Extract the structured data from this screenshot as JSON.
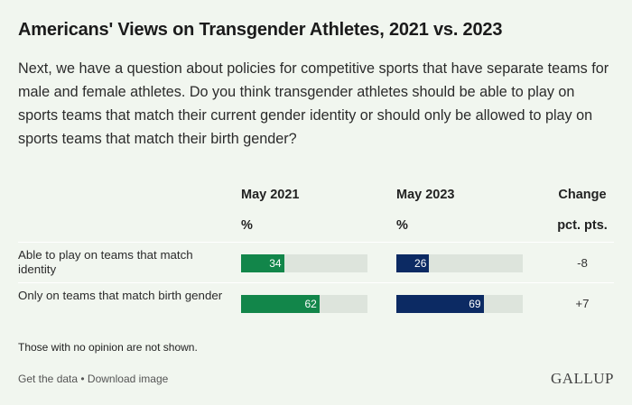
{
  "title": "Americans' Views on Transgender Athletes, 2021 vs. 2023",
  "question": "Next, we have a question about policies for competitive sports that have separate teams for male and female athletes. Do you think transgender athletes should be able to play on sports teams that match their current gender identity or should only be allowed to play on sports teams that match their birth gender?",
  "columns": {
    "col1": "May 2021",
    "col1_unit": "%",
    "col2": "May 2023",
    "col2_unit": "%",
    "change": "Change",
    "change_unit": "pct. pts."
  },
  "colors": {
    "may2021": "#12864a",
    "may2023": "#0c2a63",
    "track": "#dde4dc",
    "background": "#f1f6ef"
  },
  "chart_data": {
    "type": "bar",
    "categories": [
      "Able to play on teams that match identity",
      "Only on teams that match birth gender"
    ],
    "series": [
      {
        "name": "May 2021",
        "values": [
          34,
          62
        ]
      },
      {
        "name": "May 2023",
        "values": [
          26,
          69
        ]
      }
    ],
    "change": [
      "-8",
      "+7"
    ],
    "ylim": [
      0,
      100
    ]
  },
  "note": "Those with no opinion are not shown.",
  "footer": {
    "get_data": "Get the data",
    "separator": " • ",
    "download": "Download image"
  },
  "logo": "GALLUP"
}
